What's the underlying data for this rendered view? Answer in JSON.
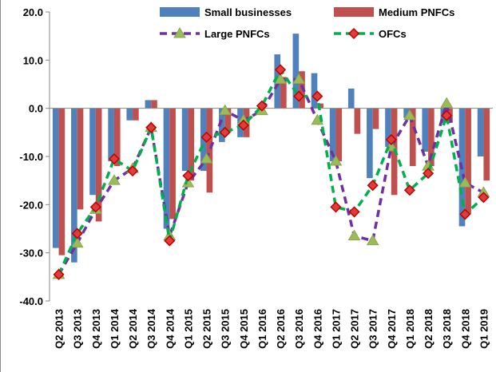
{
  "chart_data": {
    "type": "bar_line",
    "categories": [
      "Q2 2013",
      "Q3 2013",
      "Q4 2013",
      "Q1 2014",
      "Q2 2014",
      "Q3 2014",
      "Q4 2014",
      "Q1 2015",
      "Q2 2015",
      "Q3 2015",
      "Q4 2015",
      "Q1 2016",
      "Q2 2016",
      "Q3 2016",
      "Q4 2016",
      "Q1 2017",
      "Q2 2017",
      "Q3 2017",
      "Q4 2017",
      "Q1 2018",
      "Q2 2018",
      "Q3 2018",
      "Q4 2018",
      "Q1 2019"
    ],
    "series": [
      {
        "name": "Small businesses",
        "type": "bar",
        "color": "#4f81bd",
        "values": [
          -29,
          -32,
          -18,
          -11,
          -2.5,
          1.7,
          -25,
          -13,
          -13,
          -7,
          -6,
          0,
          11.2,
          15.5,
          7.3,
          -11,
          4.1,
          -14.5,
          -8,
          -2,
          -9,
          -3,
          -24.5,
          -10
        ]
      },
      {
        "name": "Medium PNFCs",
        "type": "bar",
        "color": "#c0504d",
        "values": [
          -30.5,
          -21,
          -23.5,
          -12,
          -2.5,
          1.7,
          -23,
          -15,
          -17.5,
          -5,
          -6,
          0,
          6.5,
          7.7,
          1,
          -11,
          -5.3,
          -4.3,
          -18,
          -12,
          -12,
          -3,
          -22,
          -15
        ]
      },
      {
        "name": "Large PNFCs",
        "type": "line",
        "color": "#7030a0",
        "marker": "triangle",
        "marker_color": "#9bbb59",
        "values": [
          -34.5,
          -28,
          -21,
          -15,
          -12.5,
          -4,
          -26.5,
          -15.5,
          -10.5,
          -0.5,
          -2.5,
          -0.5,
          6,
          6,
          -2.5,
          -11,
          -26.5,
          -27.5,
          -8,
          -1.5,
          -12,
          1,
          -15.5,
          -17.5
        ]
      },
      {
        "name": "OFCs",
        "type": "line",
        "color": "#00b050",
        "marker": "diamond",
        "marker_color": "#e03c3c",
        "values": [
          -34.5,
          -26,
          -20.5,
          -10.5,
          -13,
          -4,
          -27.5,
          -14,
          -6,
          -5,
          -3.5,
          0.5,
          8,
          2.5,
          2.5,
          -20.5,
          -21.5,
          -16,
          -6.5,
          -17,
          -13.5,
          -1.5,
          -22,
          -18.5
        ]
      }
    ],
    "ylim": [
      -40,
      20
    ],
    "yticks": [
      {
        "value": -40,
        "label": "-40.0"
      },
      {
        "value": -30,
        "label": "-30.0"
      },
      {
        "value": -20,
        "label": "-20.0"
      },
      {
        "value": -10,
        "label": "-10.0"
      },
      {
        "value": 0,
        "label": "0.0"
      },
      {
        "value": 10,
        "label": "10.0"
      },
      {
        "value": 20,
        "label": "20.0"
      }
    ]
  }
}
